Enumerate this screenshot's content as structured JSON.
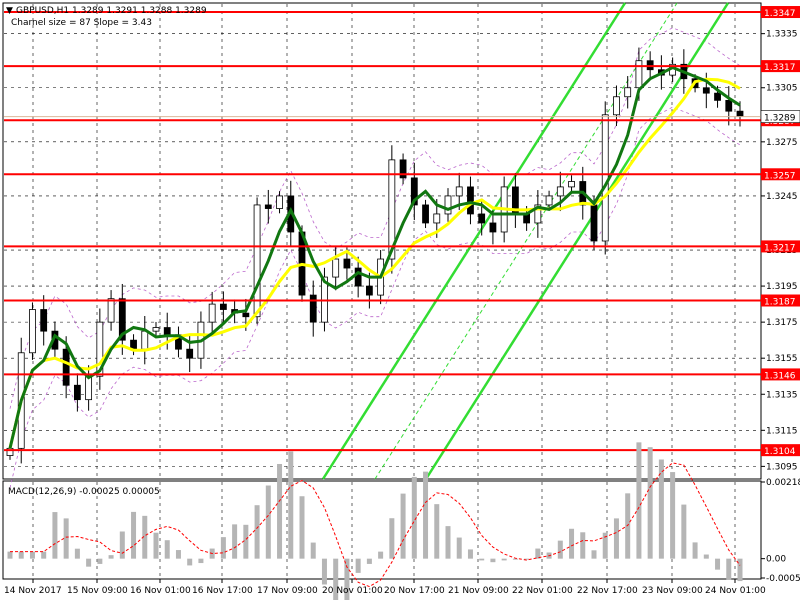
{
  "header": {
    "title": "GBPUSD,H1  1.3289 1.3291 1.3288 1.3289",
    "subtitle": "Charnel size = 87 Slope = 3.43"
  },
  "colors": {
    "candle": "#000000",
    "level_line": "#ff0000",
    "channel": "#33dd33",
    "ma_fast": "#117711",
    "ma_slow": "#ffff00",
    "envelope": "#bb66cc",
    "macd_hist": "#b5b5b5",
    "macd_signal": "#ff0000",
    "bid_line": "#dcb79a",
    "grid": "#000000"
  },
  "chart_data": [
    {
      "type": "candlestick",
      "title": "GBPUSD,H1  1.3289 1.3291 1.3288 1.3289",
      "ylim": [
        1.3088,
        1.3352
      ],
      "y_ticks": [
        "1.3335",
        "1.3305",
        "1.3275",
        "1.3245",
        "1.3215",
        "1.3195",
        "1.3175",
        "1.3155",
        "1.3135",
        "1.3115",
        "1.3095"
      ],
      "x_labels": [
        "14 Nov 2017",
        "15 Nov 09:00",
        "16 Nov 01:00",
        "16 Nov 17:00",
        "17 Nov 09:00",
        "20 Nov 01:00",
        "20 Nov 17:00",
        "21 Nov 09:00",
        "22 Nov 01:00",
        "22 Nov 17:00",
        "23 Nov 09:00",
        "24 Nov 01:00"
      ],
      "levels": [
        "1.3347",
        "1.3317",
        "1.3287",
        "1.3257",
        "1.3217",
        "1.3187",
        "1.3146",
        "1.3104"
      ],
      "current_price_label": "1.3289",
      "closes": [
        1.3105,
        1.3158,
        1.3182,
        1.317,
        1.316,
        1.314,
        1.3132,
        1.3145,
        1.3175,
        1.3188,
        1.3165,
        1.316,
        1.317,
        1.3172,
        1.3168,
        1.316,
        1.3155,
        1.3175,
        1.3185,
        1.3182,
        1.318,
        1.3178,
        1.324,
        1.3238,
        1.3245,
        1.3225,
        1.319,
        1.3175,
        1.32,
        1.321,
        1.3205,
        1.3195,
        1.319,
        1.321,
        1.3265,
        1.3255,
        1.324,
        1.323,
        1.3235,
        1.3245,
        1.325,
        1.3235,
        1.323,
        1.3225,
        1.325,
        1.3235,
        1.323,
        1.324,
        1.3245,
        1.325,
        1.3253,
        1.324,
        1.322,
        1.329,
        1.33,
        1.3305,
        1.332,
        1.3315,
        1.3312,
        1.3318,
        1.331,
        1.3305,
        1.3302,
        1.3298,
        1.3292,
        1.3289
      ]
    },
    {
      "type": "histogram",
      "title": "MACD(12,26,9) -0.00025 0.00005",
      "y_ticks": [
        "0.00218",
        "0.00",
        "-0.00055"
      ],
      "ylim": [
        -0.00055,
        0.00218
      ]
    }
  ]
}
